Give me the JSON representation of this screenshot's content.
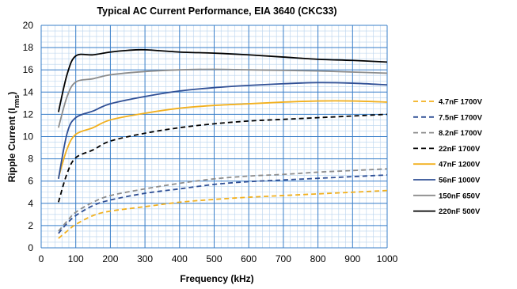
{
  "chart_data": {
    "type": "line",
    "title": "Typical AC Current Performance, EIA 3640 (CKC33)",
    "xlabel": "Frequency (kHz)",
    "ylabel_main": "Ripple Current (I",
    "ylabel_sub": "rms",
    "ylabel_close": ")",
    "xlim": [
      0,
      1000
    ],
    "ylim": [
      0,
      20
    ],
    "x_ticks": [
      0,
      100,
      200,
      300,
      400,
      500,
      600,
      700,
      800,
      900,
      1000
    ],
    "y_ticks": [
      0,
      2,
      4,
      6,
      8,
      10,
      12,
      14,
      16,
      18,
      20
    ],
    "x_minor_step": 20,
    "y_minor_step": 0.5,
    "grid": true,
    "legend_position": "right",
    "series": [
      {
        "name": "4.7nF 1700V",
        "color": "#f2b01e",
        "dash": "6,4",
        "points": [
          [
            50,
            0.85
          ],
          [
            75,
            1.5
          ],
          [
            100,
            2.1
          ],
          [
            150,
            2.9
          ],
          [
            200,
            3.3
          ],
          [
            300,
            3.7
          ],
          [
            400,
            4.1
          ],
          [
            500,
            4.35
          ],
          [
            600,
            4.55
          ],
          [
            700,
            4.7
          ],
          [
            800,
            4.85
          ],
          [
            900,
            5.0
          ],
          [
            1000,
            5.15
          ]
        ]
      },
      {
        "name": "7.5nF 1700V",
        "color": "#2f4f95",
        "dash": "6,4",
        "points": [
          [
            50,
            1.3
          ],
          [
            75,
            2.2
          ],
          [
            100,
            2.9
          ],
          [
            150,
            3.8
          ],
          [
            200,
            4.3
          ],
          [
            300,
            4.9
          ],
          [
            400,
            5.3
          ],
          [
            500,
            5.7
          ],
          [
            600,
            5.95
          ],
          [
            700,
            6.1
          ],
          [
            800,
            6.25
          ],
          [
            900,
            6.4
          ],
          [
            1000,
            6.55
          ]
        ]
      },
      {
        "name": "8.2nF 1700V",
        "color": "#8c8c8c",
        "dash": "6,4",
        "points": [
          [
            50,
            1.5
          ],
          [
            75,
            2.4
          ],
          [
            100,
            3.2
          ],
          [
            150,
            4.1
          ],
          [
            200,
            4.7
          ],
          [
            300,
            5.3
          ],
          [
            400,
            5.8
          ],
          [
            500,
            6.2
          ],
          [
            600,
            6.45
          ],
          [
            700,
            6.6
          ],
          [
            800,
            6.8
          ],
          [
            900,
            6.95
          ],
          [
            1000,
            7.1
          ]
        ]
      },
      {
        "name": "22nF 1700V",
        "color": "#000000",
        "dash": "6,4",
        "points": [
          [
            50,
            4.1
          ],
          [
            75,
            6.7
          ],
          [
            100,
            8.1
          ],
          [
            150,
            8.8
          ],
          [
            200,
            9.6
          ],
          [
            300,
            10.3
          ],
          [
            400,
            10.8
          ],
          [
            500,
            11.15
          ],
          [
            600,
            11.4
          ],
          [
            700,
            11.55
          ],
          [
            800,
            11.7
          ],
          [
            900,
            11.85
          ],
          [
            1000,
            12.0
          ]
        ]
      },
      {
        "name": "47nF 1200V",
        "color": "#f2b01e",
        "dash": "",
        "points": [
          [
            50,
            6.3
          ],
          [
            75,
            8.9
          ],
          [
            100,
            10.2
          ],
          [
            150,
            10.8
          ],
          [
            200,
            11.5
          ],
          [
            300,
            12.1
          ],
          [
            400,
            12.55
          ],
          [
            500,
            12.8
          ],
          [
            600,
            12.95
          ],
          [
            700,
            13.1
          ],
          [
            800,
            13.2
          ],
          [
            900,
            13.2
          ],
          [
            1000,
            13.1
          ]
        ]
      },
      {
        "name": "56nF 1000V",
        "color": "#2f4f95",
        "dash": "",
        "points": [
          [
            50,
            6.2
          ],
          [
            75,
            10.3
          ],
          [
            100,
            11.7
          ],
          [
            150,
            12.3
          ],
          [
            200,
            12.95
          ],
          [
            300,
            13.6
          ],
          [
            400,
            14.1
          ],
          [
            500,
            14.4
          ],
          [
            600,
            14.6
          ],
          [
            700,
            14.75
          ],
          [
            800,
            14.85
          ],
          [
            900,
            14.8
          ],
          [
            1000,
            14.65
          ]
        ]
      },
      {
        "name": "150nF 650V",
        "color": "#8c8c8c",
        "dash": "",
        "points": [
          [
            50,
            10.8
          ],
          [
            75,
            13.6
          ],
          [
            100,
            14.9
          ],
          [
            150,
            15.2
          ],
          [
            200,
            15.55
          ],
          [
            300,
            15.85
          ],
          [
            400,
            16.0
          ],
          [
            500,
            16.05
          ],
          [
            600,
            16.0
          ],
          [
            700,
            15.95
          ],
          [
            800,
            15.9
          ],
          [
            900,
            15.8
          ],
          [
            1000,
            15.7
          ]
        ]
      },
      {
        "name": "220nF 500V",
        "color": "#000000",
        "dash": "",
        "points": [
          [
            50,
            12.2
          ],
          [
            75,
            15.6
          ],
          [
            100,
            17.25
          ],
          [
            150,
            17.35
          ],
          [
            200,
            17.6
          ],
          [
            250,
            17.75
          ],
          [
            300,
            17.8
          ],
          [
            400,
            17.6
          ],
          [
            500,
            17.5
          ],
          [
            600,
            17.35
          ],
          [
            700,
            17.15
          ],
          [
            800,
            16.95
          ],
          [
            900,
            16.85
          ],
          [
            1000,
            16.7
          ]
        ]
      }
    ]
  }
}
